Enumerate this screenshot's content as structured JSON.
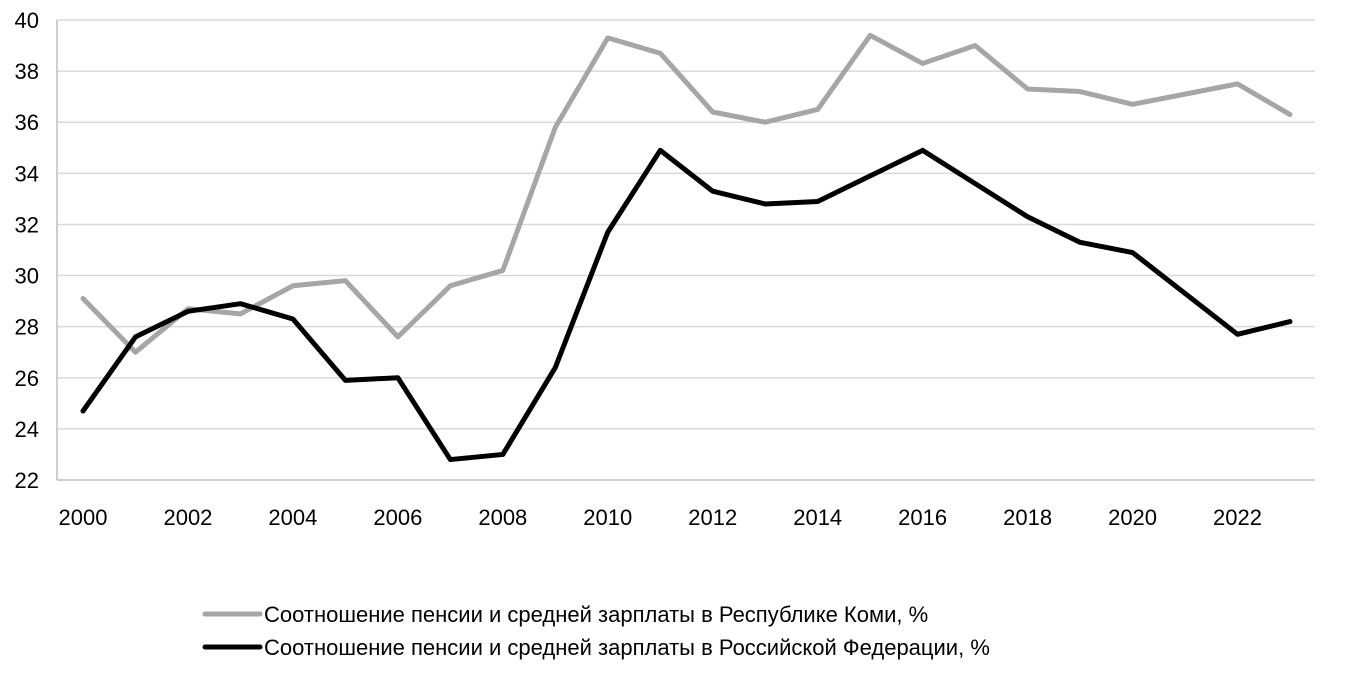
{
  "chart_data": {
    "type": "line",
    "title": "",
    "xlabel": "",
    "ylabel": "",
    "x": [
      2000,
      2001,
      2002,
      2003,
      2004,
      2005,
      2006,
      2007,
      2008,
      2009,
      2010,
      2011,
      2012,
      2013,
      2014,
      2015,
      2016,
      2017,
      2018,
      2019,
      2020,
      2021,
      2022,
      2023
    ],
    "x_tick_labels": [
      "2000",
      "2002",
      "2004",
      "2006",
      "2008",
      "2010",
      "2012",
      "2014",
      "2016",
      "2018",
      "2020",
      "2022"
    ],
    "ylim": [
      22,
      40
    ],
    "y_tick_labels": [
      "22",
      "24",
      "26",
      "28",
      "30",
      "32",
      "34",
      "36",
      "38",
      "40"
    ],
    "grid": "horizontal",
    "legend_position": "bottom",
    "series": [
      {
        "name": "Соотношение пенсии и средней зарплаты в Республике Коми, %",
        "color": "#a6a6a6",
        "values": [
          29.1,
          27.0,
          28.7,
          28.5,
          29.6,
          29.8,
          27.6,
          29.6,
          30.2,
          35.8,
          39.3,
          38.7,
          36.4,
          36.0,
          36.5,
          39.4,
          38.3,
          39.0,
          37.3,
          37.2,
          36.7,
          37.1,
          37.5,
          36.3
        ]
      },
      {
        "name": "Соотношение пенсии и средней зарплаты в Российской Федерации, %",
        "color": "#000000",
        "values": [
          24.7,
          27.6,
          28.6,
          28.9,
          28.3,
          25.9,
          26.0,
          22.8,
          23.0,
          26.4,
          31.7,
          34.9,
          33.3,
          32.8,
          32.9,
          33.9,
          34.9,
          33.6,
          32.3,
          31.3,
          30.9,
          29.3,
          27.7,
          28.2
        ]
      }
    ]
  }
}
